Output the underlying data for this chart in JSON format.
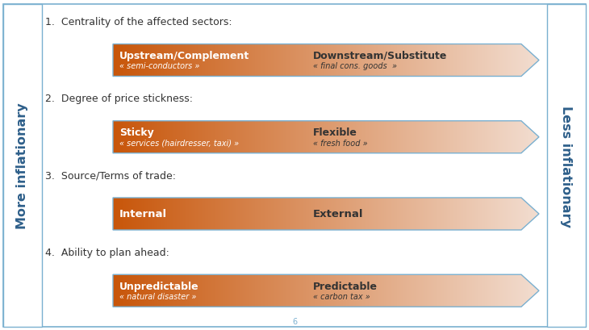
{
  "bg_color": "#ffffff",
  "border_color": "#7ab0d0",
  "left_label": "More inflationary",
  "right_label": "Less inflationary",
  "rows": [
    {
      "number": "1.",
      "title": "Centrality of the affected sectors:",
      "left_term": "Upstream/Complement",
      "left_sub": "« semi-conductors »",
      "right_term": "Downstream/Substitute",
      "right_sub": "« final cons. goods  »"
    },
    {
      "number": "2.",
      "title": "Degree of price stickness:",
      "left_term": "Sticky",
      "left_sub": "« services (hairdresser, taxi) »",
      "right_term": "Flexible",
      "right_sub": "« fresh food »"
    },
    {
      "number": "3.",
      "title": "Source/Terms of trade:",
      "left_term": "Internal",
      "left_sub": "",
      "right_term": "External",
      "right_sub": ""
    },
    {
      "number": "4.",
      "title": "Ability to plan ahead:",
      "left_term": "Unpredictable",
      "left_sub": "« natural disaster »",
      "right_term": "Predictable",
      "right_sub": "« carbon tax »"
    }
  ],
  "arrow_left_color": "#c8560a",
  "arrow_right_color": "#f2ddd0",
  "arrow_border_color": "#7ab0d0",
  "title_color": "#333333",
  "left_text_color": "#ffffff",
  "right_text_color": "#333333",
  "sidebar_text_color": "#2e5f8a",
  "page_number": "6",
  "figw": 7.3,
  "figh": 4.1,
  "dpi": 100
}
